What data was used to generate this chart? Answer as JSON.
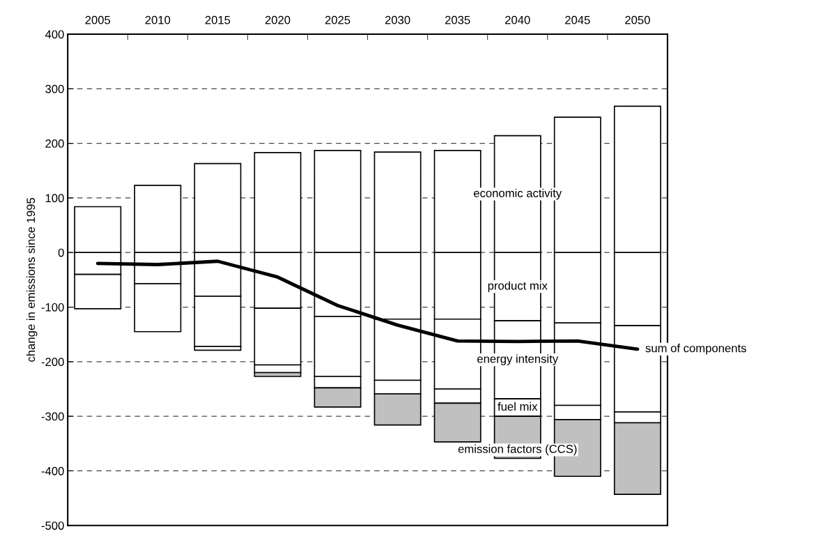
{
  "chart_data": {
    "type": "bar",
    "stacked": true,
    "ylabel": "change in emissions since 1995",
    "categories": [
      "2005",
      "2010",
      "2015",
      "2020",
      "2025",
      "2030",
      "2035",
      "2040",
      "2045",
      "2050"
    ],
    "series": [
      {
        "name": "economic activity",
        "color": "#ffffff",
        "values": [
          84,
          123,
          163,
          183,
          187,
          184,
          187,
          214,
          248,
          268
        ]
      },
      {
        "name": "product mix",
        "color": "#ffffff",
        "values": [
          -40,
          -57,
          -80,
          -102,
          -117,
          -122,
          -122,
          -125,
          -129,
          -134
        ]
      },
      {
        "name": "energy intensity",
        "color": "#ffffff",
        "values": [
          -63,
          -88,
          -92,
          -104,
          -110,
          -112,
          -128,
          -143,
          -151,
          -158
        ]
      },
      {
        "name": "fuel mix",
        "color": "#ffffff",
        "values": [
          0,
          0,
          -7,
          -14,
          -21,
          -25,
          -26,
          -32,
          -26,
          -20
        ]
      },
      {
        "name": "emission factors (CCS)",
        "color": "#c0c0c0",
        "values": [
          0,
          0,
          0,
          -7,
          -35,
          -57,
          -71,
          -77,
          -104,
          -131
        ]
      },
      {
        "name": "sum of components",
        "type": "line",
        "color": "#000000",
        "values": [
          -20,
          -22,
          -16,
          -45,
          -97,
          -133,
          -162,
          -163,
          -162,
          -177
        ]
      }
    ],
    "ylim": [
      -500,
      400
    ],
    "yticks": [
      -500,
      -400,
      -300,
      -200,
      -100,
      0,
      100,
      200,
      300,
      400
    ],
    "grid": "y",
    "legend": false,
    "marker": "none",
    "line_style": "solid"
  }
}
